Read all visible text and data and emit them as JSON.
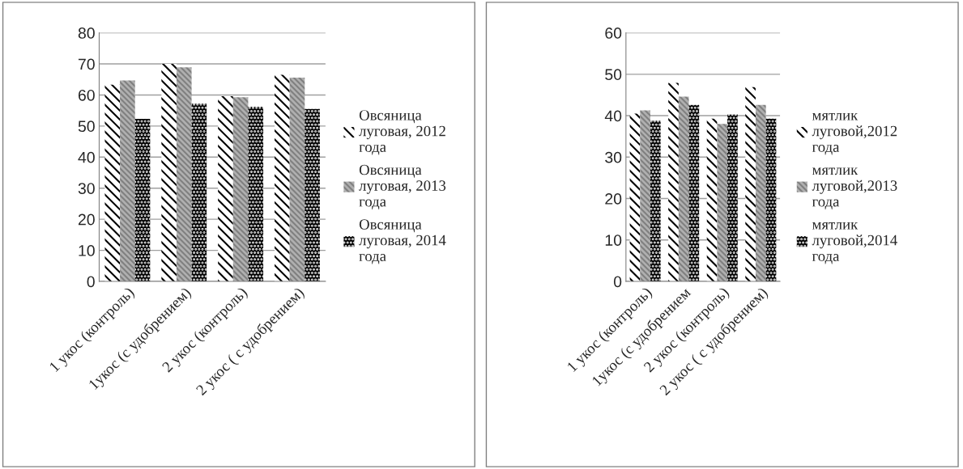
{
  "chart_data": [
    {
      "type": "bar",
      "categories": [
        "1 укос (контроль)",
        "1укос (с удобрением)",
        "2 укос (контроль)",
        "2 укос ( с удобрением)"
      ],
      "ylim": [
        0,
        80
      ],
      "yticks": [
        0,
        10,
        20,
        30,
        40,
        50,
        60,
        70,
        80
      ],
      "grid": "y",
      "legend": "right",
      "series": [
        {
          "name": "Овсяница\nлуговая, 2012\nгода",
          "color": "#000000",
          "values": [
            63.3,
            70,
            59.6,
            66.5
          ]
        },
        {
          "name": "Овсяница\nлуговая, 2013\nгода",
          "color": "#808080",
          "values": [
            64.7,
            68.9,
            59.3,
            65.6
          ]
        },
        {
          "name": "Овсяница\nлуговая, 2014\nгода",
          "color": "#000000",
          "values": [
            52.3,
            57.2,
            56.2,
            55.5
          ]
        }
      ]
    },
    {
      "type": "bar",
      "categories": [
        "1 укос (контроль)",
        "1укос (с удобрением",
        "2 укос (контроль)",
        "2 укос ( с удобрением)"
      ],
      "ylim": [
        0,
        60
      ],
      "yticks": [
        0,
        10,
        20,
        30,
        40,
        50,
        60
      ],
      "grid": "y",
      "legend": "right",
      "series": [
        {
          "name": "мятлик\nлуговой,2012\nгода",
          "color": "#000000",
          "values": [
            40.5,
            47.9,
            39.3,
            46.9
          ]
        },
        {
          "name": "мятлик\nлуговой,2013\nгода",
          "color": "#808080",
          "values": [
            41.3,
            44.6,
            38.0,
            42.6
          ]
        },
        {
          "name": "мятлик\nлуговой,2014\nгода",
          "color": "#000000",
          "values": [
            38.8,
            42.6,
            40.3,
            39.3
          ]
        }
      ]
    }
  ]
}
